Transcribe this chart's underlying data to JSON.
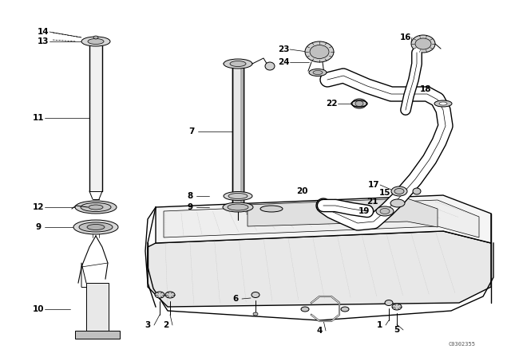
{
  "background_color": "#ffffff",
  "figsize": [
    6.4,
    4.48
  ],
  "dpi": 100,
  "diagram_code": "C0302355",
  "line_color": "#000000",
  "gray_light": "#c8c8c8",
  "gray_mid": "#a0a0a0",
  "font_size_label": 7.5
}
